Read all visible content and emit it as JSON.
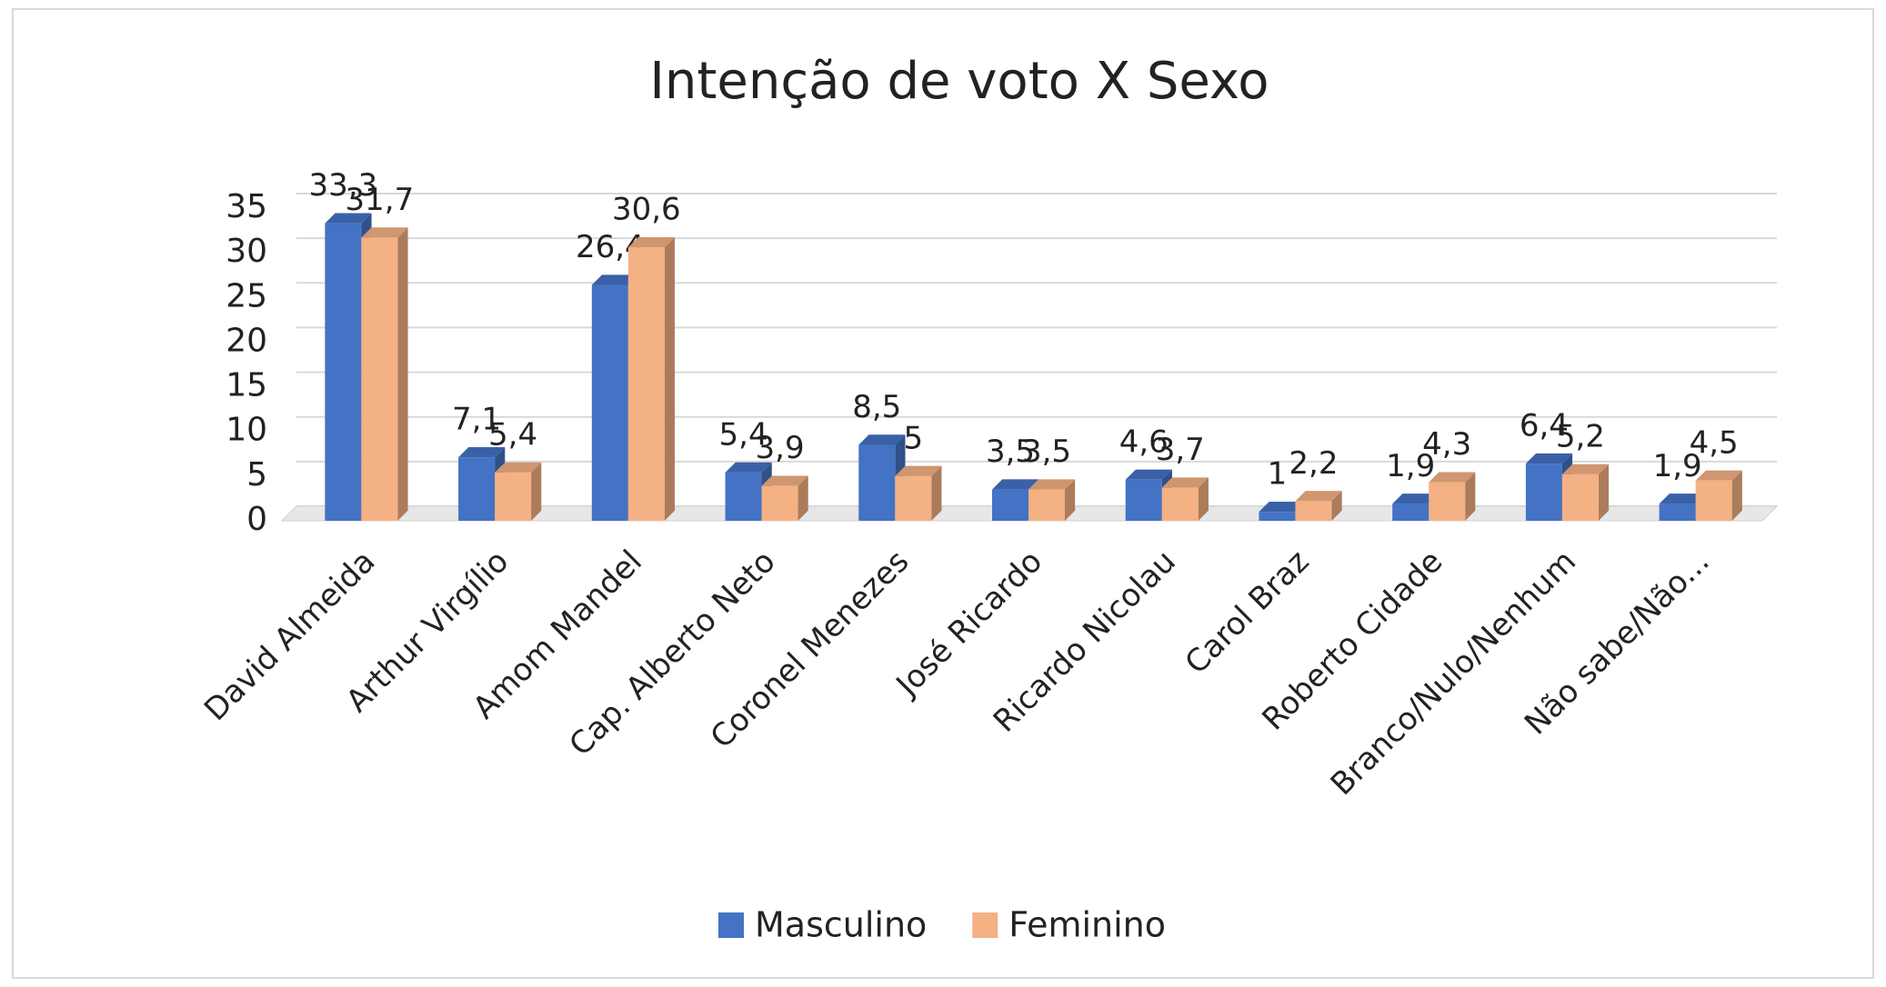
{
  "chart_data": {
    "type": "bar3d",
    "title": "Intenção de voto X Sexo",
    "categories": [
      "David Almeida",
      "Arthur Virgílio",
      "Amom Mandel",
      "Cap. Alberto Neto",
      "Coronel Menezes",
      "José Ricardo",
      "Ricardo Nicolau",
      "Carol Braz",
      "Roberto Cidade",
      "Branco/Nulo/Nenhum",
      "Não sabe/Não..."
    ],
    "series": [
      {
        "name": "Masculino",
        "color": "#4472c4",
        "values": [
          33.3,
          7.1,
          26.4,
          5.4,
          8.5,
          3.5,
          4.6,
          1,
          1.9,
          6.4,
          1.9
        ],
        "value_labels": [
          "33,3",
          "7,1",
          "26,4",
          "5,4",
          "8,5",
          "3,5",
          "4,6",
          "1",
          "1,9",
          "6,4",
          "1,9"
        ]
      },
      {
        "name": "Feminino",
        "color": "#f4b183",
        "values": [
          31.7,
          5.4,
          30.6,
          3.9,
          5,
          3.5,
          3.7,
          2.2,
          4.3,
          5.2,
          4.5
        ],
        "value_labels": [
          "31,7",
          "5,4",
          "30,6",
          "3,9",
          "5",
          "3,5",
          "3,7",
          "2,2",
          "4,3",
          "5,2",
          "4,5"
        ]
      }
    ],
    "ylim": [
      0,
      35
    ],
    "yticks": [
      0,
      5,
      10,
      15,
      20,
      25,
      30,
      35
    ],
    "grid": true,
    "legend": "bottom"
  }
}
